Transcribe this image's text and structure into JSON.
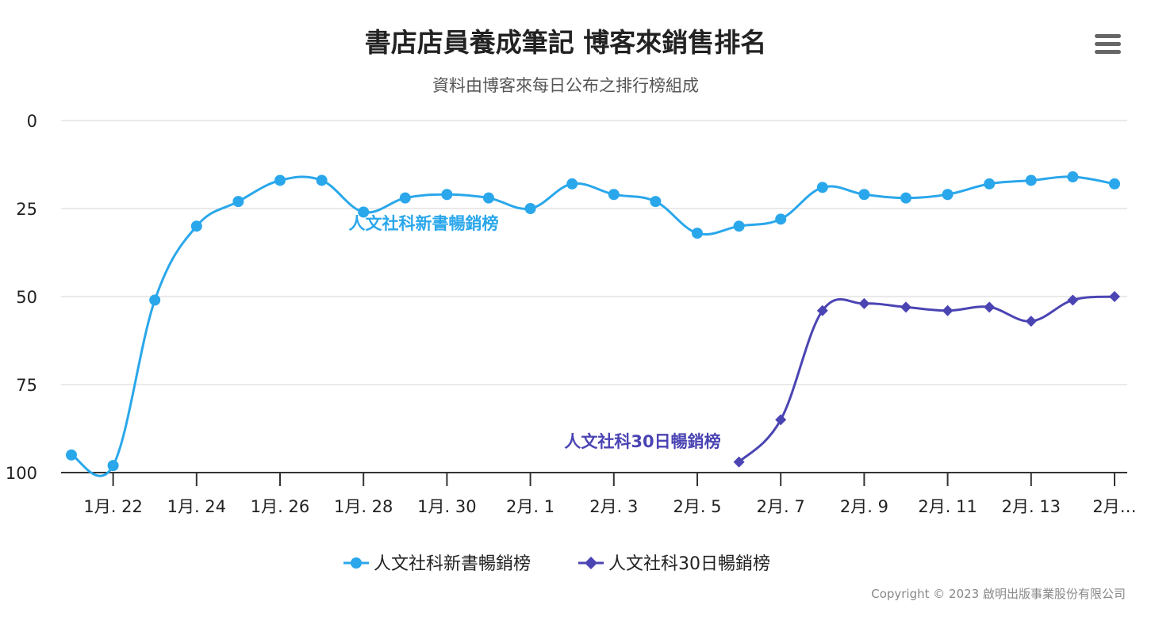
{
  "chart_data": {
    "type": "line",
    "title": "書店店員養成筆記 博客來銷售排名",
    "subtitle": "資料由博客來每日公布之排行榜組成",
    "credit": "Copyright © 2023 啟明出版事業股份有限公司",
    "y_reversed": true,
    "ylim": [
      0,
      100
    ],
    "y_ticks": [
      "0",
      "25",
      "50",
      "75",
      "100"
    ],
    "x_tick_labels": [
      "1月. 22",
      "1月. 24",
      "1月. 26",
      "1月. 28",
      "1月. 30",
      "2月. 1",
      "2月. 3",
      "2月. 5",
      "2月. 7",
      "2月. 9",
      "2月. 11",
      "2月. 13",
      "2月…"
    ],
    "x_tick_index": [
      1,
      3,
      5,
      7,
      9,
      11,
      13,
      15,
      17,
      19,
      21,
      23,
      25
    ],
    "x_count": 26,
    "x_dates": [
      "1月.21",
      "1月.22",
      "1月.23",
      "1月.24",
      "1月.25",
      "1月.26",
      "1月.27",
      "1月.28",
      "1月.29",
      "1月.30",
      "1月.31",
      "2月.1",
      "2月.2",
      "2月.3",
      "2月.4",
      "2月.5",
      "2月.6",
      "2月.7",
      "2月.8",
      "2月.9",
      "2月.10",
      "2月.11",
      "2月.12",
      "2月.13",
      "2月.14",
      "2月.15"
    ],
    "legend_position": "bottom-center",
    "grid": true,
    "series": [
      {
        "name": "人文社科新書暢銷榜",
        "color": "#2aa7eb",
        "marker": "circle",
        "values": [
          95,
          98,
          51,
          30,
          23,
          17,
          17,
          26,
          22,
          21,
          22,
          25,
          18,
          21,
          23,
          32,
          30,
          28,
          19,
          21,
          22,
          21,
          18,
          17,
          16,
          18
        ]
      },
      {
        "name": "人文社科30日暢銷榜",
        "color": "#4b44b3",
        "marker": "diamond",
        "values": [
          null,
          null,
          null,
          null,
          null,
          null,
          null,
          null,
          null,
          null,
          null,
          null,
          null,
          null,
          null,
          null,
          97,
          85,
          54,
          52,
          53,
          54,
          53,
          57,
          51,
          50
        ]
      }
    ],
    "series_labels": [
      "人文社科新書暢銷榜",
      "人文社科30日暢銷榜"
    ]
  },
  "menu": {
    "icon": "hamburger-menu-icon"
  }
}
